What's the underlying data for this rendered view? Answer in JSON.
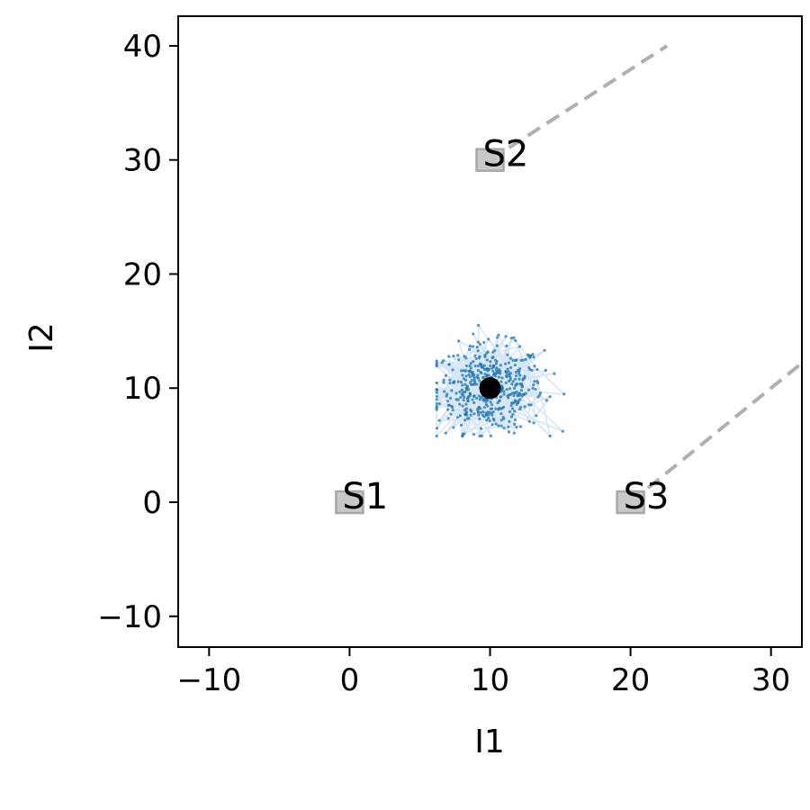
{
  "chart_data": {
    "type": "scatter",
    "xlabel": "I1",
    "ylabel": "I2",
    "xlim": [
      -12.2,
      32.2
    ],
    "ylim": [
      -12.7,
      42.6
    ],
    "x_ticks": [
      -10,
      0,
      10,
      20,
      30
    ],
    "y_ticks": [
      -10,
      0,
      10,
      20,
      30,
      40
    ],
    "x_tick_labels": [
      "−10",
      "0",
      "10",
      "20",
      "30"
    ],
    "y_tick_labels": [
      "−10",
      "0",
      "10",
      "20",
      "30",
      "40"
    ],
    "grid": false,
    "stations": [
      {
        "label": "S1",
        "x": 0,
        "y": 0
      },
      {
        "label": "S2",
        "x": 10,
        "y": 30
      },
      {
        "label": "S3",
        "x": 20,
        "y": 0
      }
    ],
    "dashed_lines": [
      {
        "from": [
          10,
          30
        ],
        "to": [
          22.6,
          40
        ]
      },
      {
        "from": [
          20,
          0
        ],
        "to": [
          32.2,
          12.2
        ]
      }
    ],
    "center": {
      "x": 10,
      "y": 10
    },
    "cloud": {
      "center": [
        10,
        10
      ],
      "spread": 1.9,
      "count": 500,
      "x_range": [
        6.2,
        17.3
      ],
      "y_range": [
        5.8,
        15.5
      ]
    },
    "colors": {
      "cloud_point": "#1f77b4",
      "cloud_line": "#c6dbef",
      "station_fill": "#c8c8c8",
      "station_edge": "#a8a8a8",
      "dashed_line": "#b0b0b0",
      "center": "#000000"
    }
  }
}
